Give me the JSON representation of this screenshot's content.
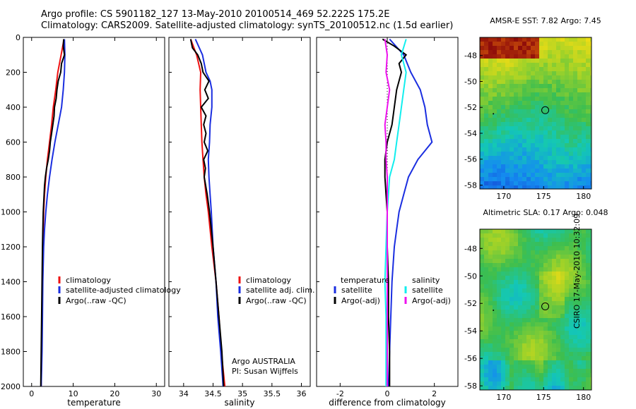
{
  "header": {
    "title_line1": "Argo profile: CS 5901182_127 13-May-2010 20100514_469 52.222S 175.2E",
    "title_line2": "Climatology: CARS2009. Satellite-adjusted climatology: synTS_20100512.nc (1.5d earlier)"
  },
  "footer": {
    "side_label": "CSIRO 17-May-2010 10:32:09",
    "argo_note_line1": "Argo AUSTRALIA",
    "argo_note_line2": "PI: Susan Wijffels"
  },
  "colors": {
    "climatology": "#ee1111",
    "satellite": "#1a2ee0",
    "argo": "#000000",
    "salinity_satellite": "#11eeee",
    "salinity_argo": "#ee11ee"
  },
  "chart_data": [
    {
      "type": "line",
      "panel": "temperature",
      "xlabel": "temperature",
      "ylabel": "",
      "xlim": [
        -2,
        32
      ],
      "ylim": [
        2000,
        0
      ],
      "xticks": [
        0,
        10,
        20,
        30
      ],
      "yticks": [
        0,
        200,
        400,
        600,
        800,
        1000,
        1200,
        1400,
        1600,
        1800,
        2000
      ],
      "grid": false,
      "legend_position": "bottom-right",
      "series": [
        {
          "name": "climatology",
          "color_key": "climatology",
          "depth": [
            10,
            100,
            200,
            300,
            400,
            500,
            600,
            700,
            800,
            900,
            1000,
            1100,
            1200,
            1400,
            1600,
            1800,
            2000
          ],
          "values": [
            7.8,
            7.1,
            6.3,
            5.8,
            5.2,
            4.8,
            4.3,
            3.8,
            3.4,
            3.1,
            2.9,
            2.8,
            2.7,
            2.6,
            2.5,
            2.4,
            2.3
          ]
        },
        {
          "name": "satellite-adjusted climatology",
          "color_key": "satellite",
          "depth": [
            10,
            100,
            200,
            300,
            400,
            500,
            600,
            700,
            800,
            900,
            1000,
            1100,
            1200,
            1400,
            1600,
            1800,
            2000
          ],
          "values": [
            7.9,
            8.0,
            7.9,
            7.6,
            7.2,
            6.4,
            5.6,
            4.9,
            4.3,
            3.8,
            3.4,
            3.1,
            2.9,
            2.7,
            2.6,
            2.5,
            2.3
          ]
        },
        {
          "name": "Argo(..raw -QC)",
          "color_key": "argo",
          "depth": [
            10,
            50,
            100,
            150,
            200,
            250,
            300,
            350,
            400,
            450,
            500,
            550,
            600,
            650,
            700,
            750,
            800,
            850,
            900,
            1000,
            1100,
            1200,
            1400,
            1600,
            1800,
            2000
          ],
          "values": [
            7.7,
            7.6,
            7.9,
            7.2,
            7.0,
            6.4,
            6.1,
            5.9,
            5.5,
            5.4,
            5.1,
            4.8,
            4.5,
            4.3,
            4.0,
            3.6,
            3.3,
            3.1,
            3.0,
            2.8,
            2.7,
            2.6,
            2.5,
            2.4,
            2.3,
            2.2
          ]
        }
      ]
    },
    {
      "type": "line",
      "panel": "salinity",
      "xlabel": "salinity",
      "ylabel": "",
      "xlim": [
        33.75,
        36.15
      ],
      "ylim": [
        2000,
        0
      ],
      "xticks": [
        34,
        34.5,
        35,
        35.5,
        36
      ],
      "grid": false,
      "legend_position": "bottom-right",
      "series": [
        {
          "name": "climatology",
          "color_key": "climatology",
          "depth": [
            10,
            100,
            200,
            300,
            400,
            500,
            600,
            700,
            800,
            900,
            1000,
            1200,
            1400,
            1600,
            1800,
            2000
          ],
          "values": [
            34.12,
            34.22,
            34.29,
            34.28,
            34.29,
            34.3,
            34.31,
            34.33,
            34.35,
            34.38,
            34.42,
            34.48,
            34.55,
            34.6,
            34.64,
            34.7
          ]
        },
        {
          "name": "satellite adj. clim.",
          "color_key": "satellite",
          "depth": [
            10,
            100,
            150,
            200,
            250,
            300,
            400,
            500,
            600,
            700,
            800,
            900,
            1000,
            1200,
            1400,
            1600,
            1800,
            2000
          ],
          "values": [
            34.2,
            34.32,
            34.35,
            34.38,
            34.45,
            34.48,
            34.48,
            34.45,
            34.44,
            34.42,
            34.43,
            34.45,
            34.47,
            34.5,
            34.55,
            34.58,
            34.63,
            34.67
          ]
        },
        {
          "name": "Argo(..raw -QC)",
          "color_key": "argo",
          "depth": [
            10,
            60,
            100,
            150,
            200,
            250,
            300,
            350,
            400,
            450,
            500,
            550,
            600,
            650,
            700,
            750,
            800,
            900,
            1000,
            1200,
            1400,
            1600,
            1800,
            2000
          ],
          "values": [
            34.12,
            34.15,
            34.24,
            34.3,
            34.33,
            34.43,
            34.36,
            34.42,
            34.3,
            34.38,
            34.34,
            34.38,
            34.35,
            34.41,
            34.34,
            34.37,
            34.35,
            34.4,
            34.44,
            34.5,
            34.55,
            34.6,
            34.65,
            34.68
          ]
        }
      ]
    },
    {
      "type": "line",
      "panel": "difference",
      "xlabel": "difference from climatology",
      "ylabel": "",
      "xlim": [
        -3,
        3
      ],
      "ylim": [
        2000,
        0
      ],
      "xticks": [
        -2,
        0,
        2
      ],
      "grid": false,
      "legend_title_left": "temperature",
      "legend_title_right": "salinity",
      "series": [
        {
          "name": "satellite",
          "group": "temperature",
          "color_key": "satellite",
          "depth": [
            10,
            100,
            200,
            300,
            400,
            500,
            600,
            700,
            800,
            900,
            1000,
            1100,
            1200,
            1400,
            1600,
            1800,
            2000
          ],
          "values": [
            0.1,
            0.7,
            1.0,
            1.4,
            1.6,
            1.7,
            1.9,
            1.3,
            0.9,
            0.7,
            0.5,
            0.4,
            0.3,
            0.2,
            0.15,
            0.1,
            0.05
          ]
        },
        {
          "name": "Argo(-adj)",
          "group": "temperature",
          "color_key": "argo",
          "depth": [
            10,
            50,
            100,
            150,
            200,
            300,
            400,
            500,
            600,
            700,
            800,
            900,
            1000,
            1200,
            1400,
            1600,
            1800,
            2000
          ],
          "values": [
            -0.2,
            0.3,
            0.8,
            0.5,
            0.6,
            0.4,
            0.3,
            0.2,
            0.0,
            -0.1,
            -0.1,
            -0.05,
            0.0,
            0.0,
            0.05,
            0.05,
            0.1,
            0.1
          ]
        },
        {
          "name": "satellite",
          "group": "salinity",
          "color_key": "salinity_satellite",
          "depth": [
            10,
            100,
            200,
            300,
            400,
            500,
            600,
            700,
            800,
            1000,
            1200,
            1400,
            1600,
            1800,
            2000
          ],
          "values": [
            0.8,
            0.6,
            0.8,
            0.7,
            0.6,
            0.5,
            0.4,
            0.3,
            0.1,
            0.0,
            -0.05,
            -0.1,
            -0.05,
            -0.05,
            -0.05
          ]
        },
        {
          "name": "Argo(-adj)",
          "group": "salinity",
          "color_key": "salinity_argo",
          "depth": [
            10,
            100,
            200,
            300,
            400,
            500,
            600,
            700,
            800,
            1000,
            1200,
            1400,
            1600,
            1800,
            2000
          ],
          "values": [
            -0.1,
            0.0,
            -0.05,
            0.1,
            0.0,
            -0.1,
            -0.05,
            -0.05,
            0.0,
            0.0,
            0.0,
            0.0,
            0.0,
            0.0,
            0.0
          ]
        }
      ]
    },
    {
      "type": "heatmap",
      "panel": "sst_map",
      "title": "AMSR-E SST: 7.82 Argo: 7.45",
      "xlim": [
        167,
        181
      ],
      "ylim": [
        -58.3,
        -46.6
      ],
      "xticks": [
        170,
        175,
        180
      ],
      "yticks": [
        -48,
        -50,
        -52,
        -54,
        -56,
        -58
      ],
      "marker": {
        "lon": 175.2,
        "lat": -52.22
      }
    },
    {
      "type": "heatmap",
      "panel": "sla_map",
      "title": "Altimetric SLA: 0.17 Argo: 0.048",
      "xlim": [
        167,
        181
      ],
      "ylim": [
        -58.3,
        -46.6
      ],
      "xticks": [
        170,
        175,
        180
      ],
      "yticks": [
        -48,
        -50,
        -52,
        -54,
        -56,
        -58
      ],
      "marker": {
        "lon": 175.2,
        "lat": -52.22
      }
    }
  ]
}
